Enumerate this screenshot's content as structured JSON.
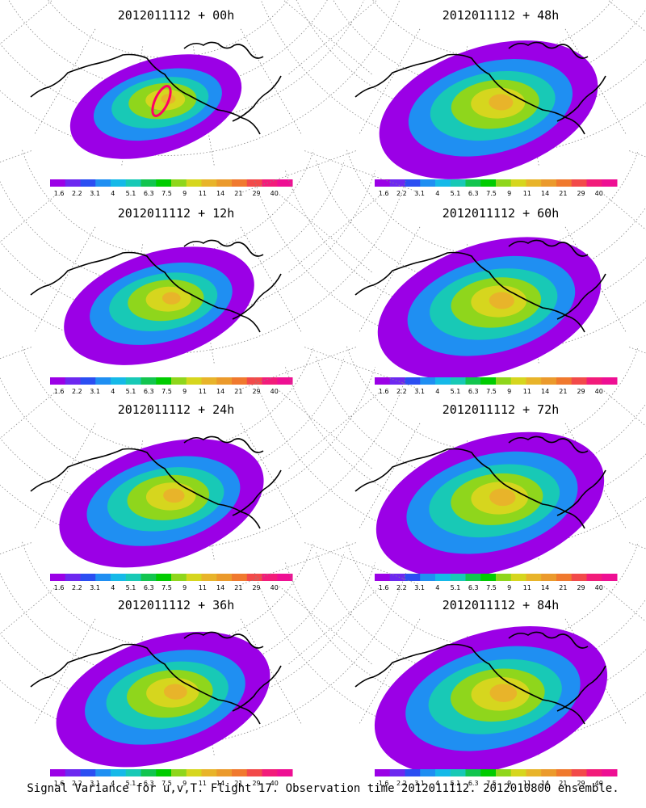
{
  "caption": "Signal Variance for u,v,T. Flight 17. Observation time 2012011112. 2012010800 ensemble.",
  "colorbar": {
    "labels": [
      "1.6",
      "2.2",
      "3.1",
      "4",
      "5.1",
      "6.3",
      "7.5",
      "9",
      "11",
      "14",
      "21",
      "29",
      "40"
    ],
    "colors": [
      "#9b00e6",
      "#6d28f0",
      "#2b4ef2",
      "#1f8ff2",
      "#15b9e8",
      "#18c9b6",
      "#12c54f",
      "#00cc00",
      "#8fd61c",
      "#d6d61e",
      "#e8b42a",
      "#eb9a2c",
      "#f0792e",
      "#f24a4a",
      "#f21c7a",
      "#ee0f93"
    ]
  },
  "panels": [
    {
      "title": "2012011112 + 00h",
      "intensity": 0.25
    },
    {
      "title": "2012011112 + 48h",
      "intensity": 0.75
    },
    {
      "title": "2012011112 + 12h",
      "intensity": 0.45
    },
    {
      "title": "2012011112 + 60h",
      "intensity": 0.8
    },
    {
      "title": "2012011112 + 24h",
      "intensity": 0.6
    },
    {
      "title": "2012011112 + 72h",
      "intensity": 0.85
    },
    {
      "title": "2012011112 + 36h",
      "intensity": 0.7
    },
    {
      "title": "2012011112 + 84h",
      "intensity": 0.9
    }
  ]
}
